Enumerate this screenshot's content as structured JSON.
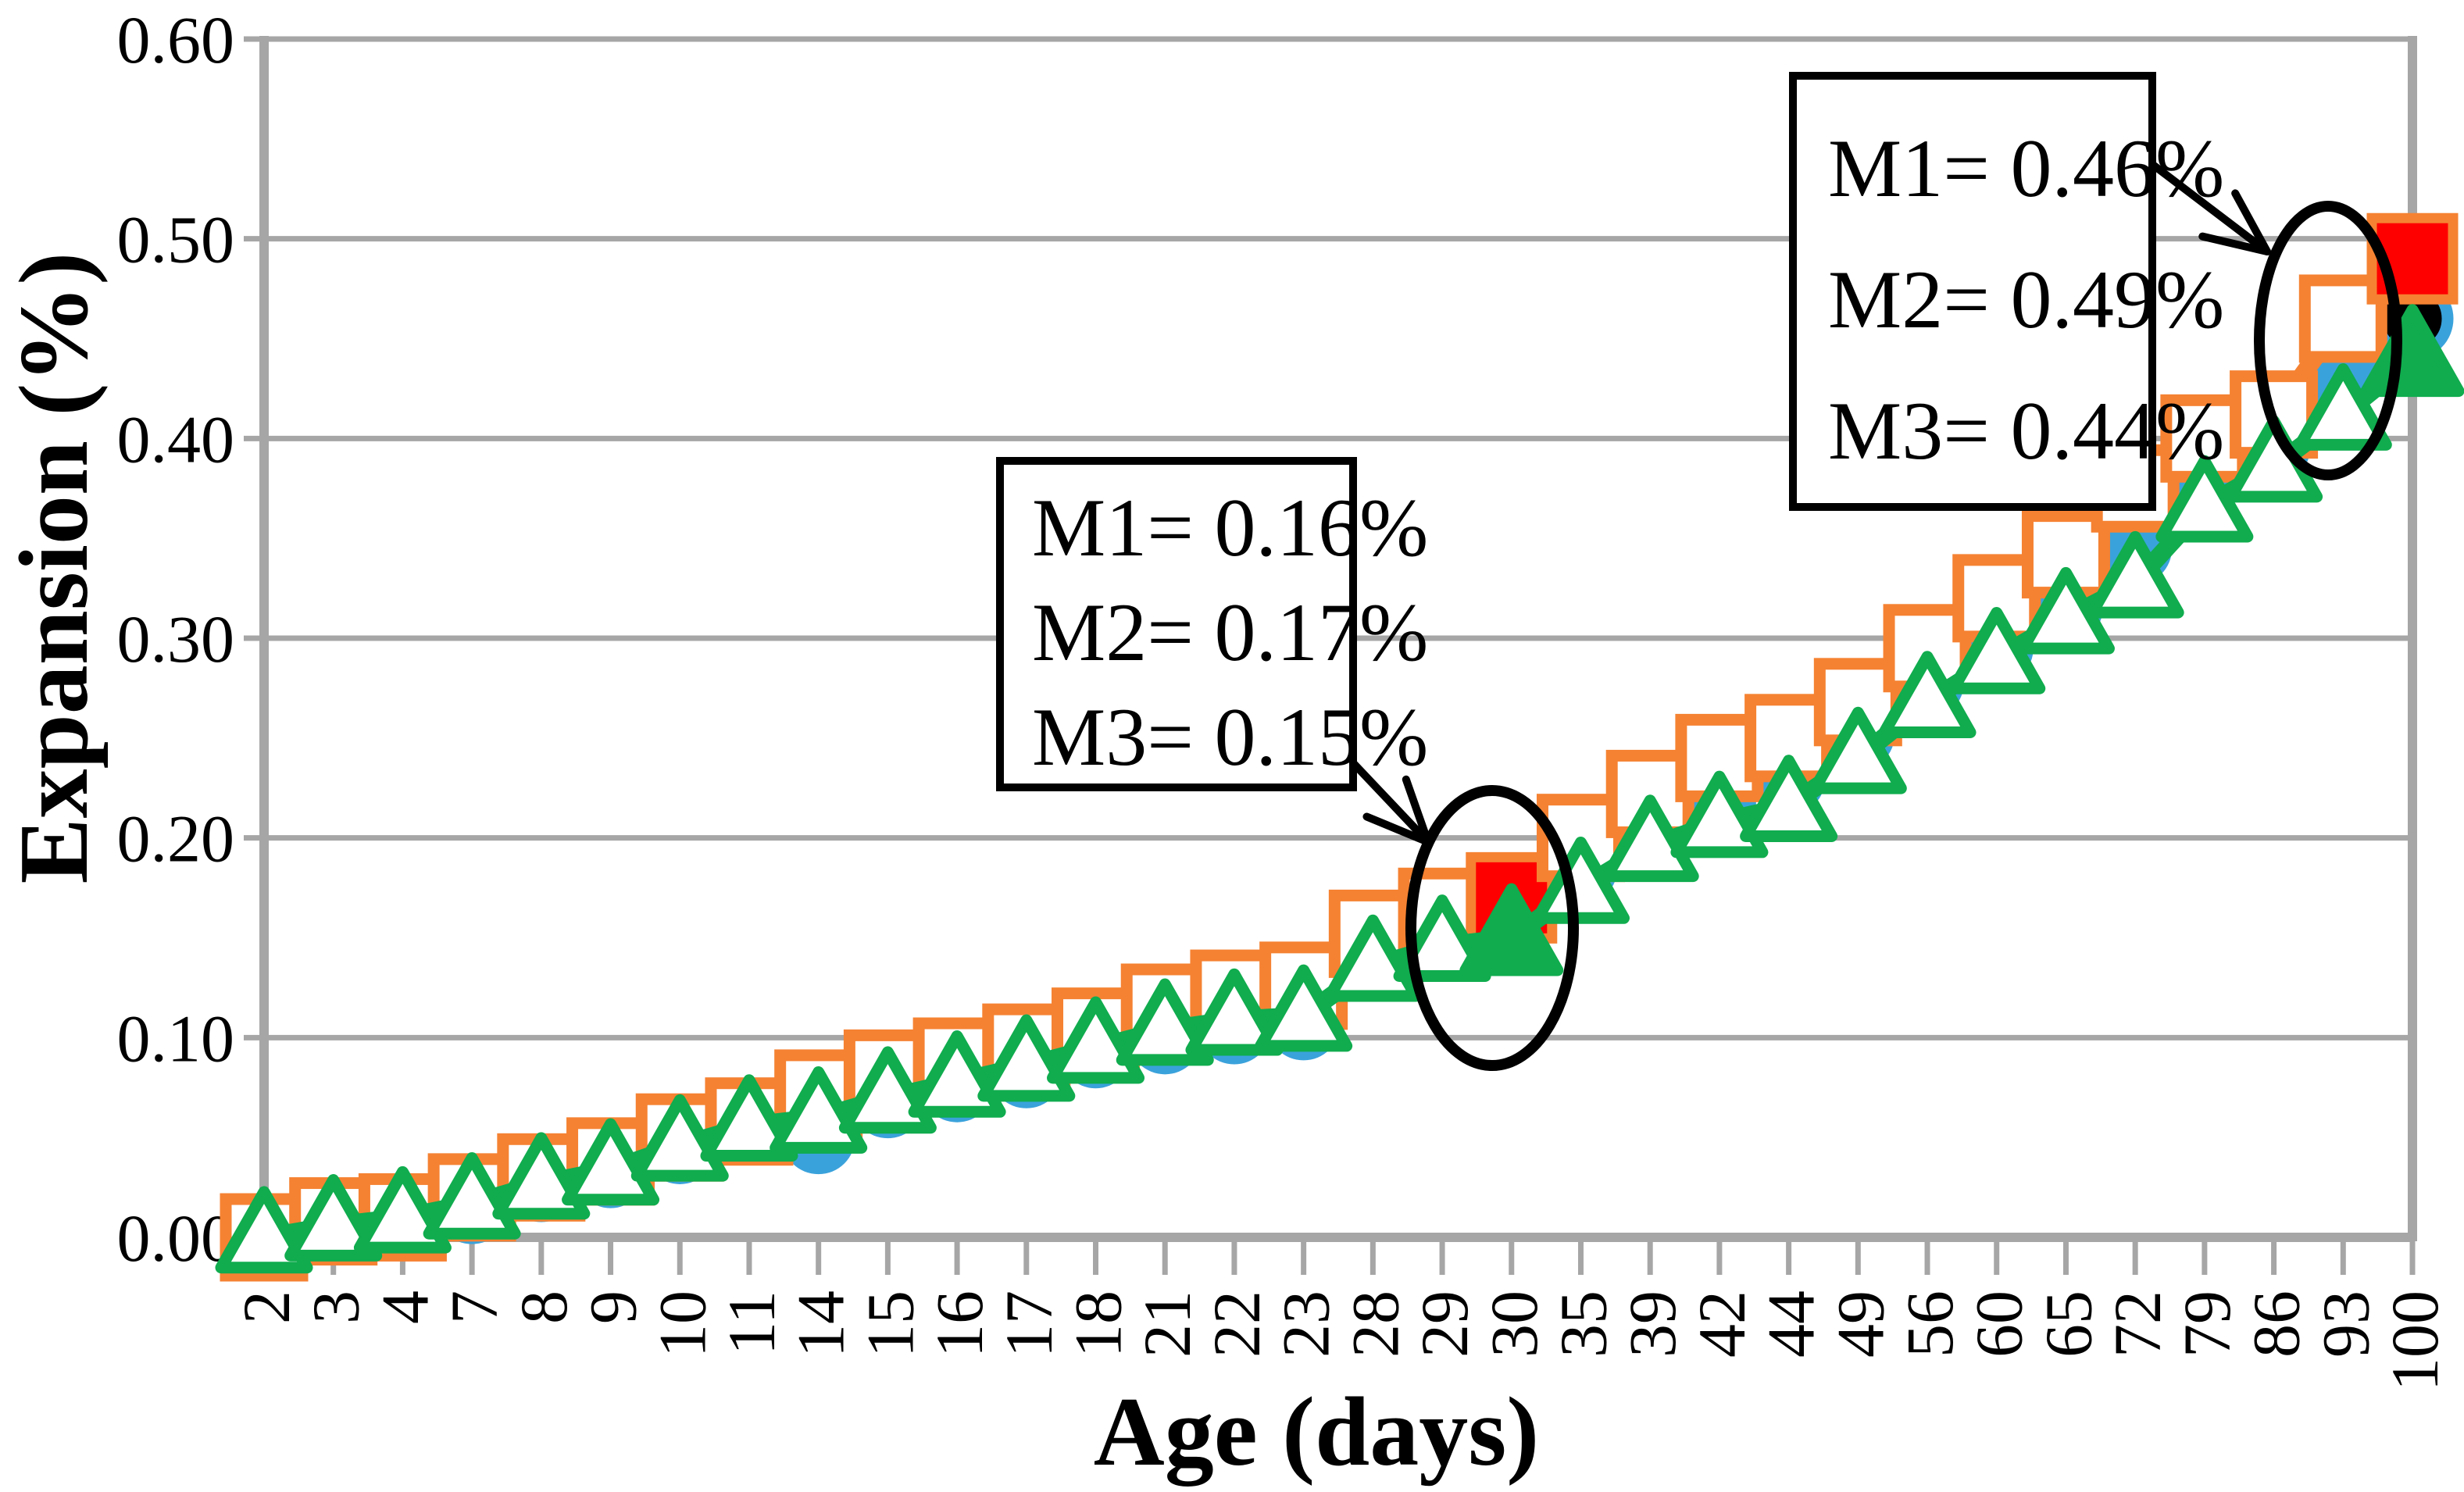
{
  "chart_data": {
    "type": "line",
    "title": "",
    "xlabel": "Age (days)",
    "ylabel": "Expansion (%)",
    "categories": [
      "2",
      "3",
      "4",
      "7",
      "8",
      "9",
      "10",
      "11",
      "14",
      "15",
      "16",
      "17",
      "18",
      "21",
      "22",
      "23",
      "28",
      "29",
      "30",
      "35",
      "39",
      "42",
      "44",
      "49",
      "56",
      "60",
      "65",
      "72",
      "79",
      "86",
      "93",
      "100"
    ],
    "ylim": [
      0.0,
      0.6
    ],
    "ytick_labels": [
      "0.00",
      "0.10",
      "0.20",
      "0.30",
      "0.40",
      "0.50",
      "0.60"
    ],
    "grid": "horizontal",
    "legend": "none",
    "series": [
      {
        "name": "M1",
        "color": "#3AA2DB",
        "marker": "circle-filled",
        "values": [
          0.0,
          0.005,
          0.008,
          0.015,
          0.026,
          0.033,
          0.045,
          0.055,
          0.05,
          0.068,
          0.076,
          0.083,
          0.093,
          0.1,
          0.105,
          0.107,
          0.143,
          0.152,
          0.16,
          0.185,
          0.207,
          0.218,
          0.23,
          0.252,
          0.278,
          0.295,
          0.315,
          0.345,
          0.388,
          0.396,
          0.434,
          0.46
        ],
        "highlight_marker_color": "#000000"
      },
      {
        "name": "M2",
        "color": "#F58232",
        "marker": "square-open",
        "values": [
          0.0,
          0.008,
          0.01,
          0.02,
          0.03,
          0.038,
          0.05,
          0.058,
          0.072,
          0.082,
          0.088,
          0.095,
          0.103,
          0.115,
          0.122,
          0.126,
          0.152,
          0.163,
          0.17,
          0.2,
          0.222,
          0.24,
          0.25,
          0.268,
          0.295,
          0.32,
          0.342,
          0.375,
          0.4,
          0.412,
          0.46,
          0.49
        ],
        "highlight_marker_color": "#FE0000"
      },
      {
        "name": "M3",
        "color": "#10AC4E",
        "marker": "triangle-open",
        "values": [
          0.0,
          0.006,
          0.01,
          0.017,
          0.027,
          0.034,
          0.046,
          0.056,
          0.06,
          0.07,
          0.078,
          0.086,
          0.095,
          0.104,
          0.109,
          0.111,
          0.136,
          0.146,
          0.15,
          0.175,
          0.196,
          0.208,
          0.216,
          0.24,
          0.268,
          0.29,
          0.31,
          0.328,
          0.366,
          0.386,
          0.412,
          0.44
        ],
        "highlight_marker_color": "#10AC4E"
      }
    ],
    "highlight_categories": [
      "30",
      "100"
    ],
    "annotations": [
      {
        "id": "day30-box",
        "lines": [
          "M1= 0.16%",
          "M2= 0.17%",
          "M3= 0.15%"
        ],
        "points_to": "day 30 markers"
      },
      {
        "id": "day100-box",
        "lines": [
          "M1= 0.46%",
          "M2= 0.49%",
          "M3= 0.44%"
        ],
        "points_to": "day 93-100 markers"
      }
    ],
    "axis_color": "#A6A6A6",
    "gridline_color": "#A6A6A6",
    "annotation_color": "#000000"
  }
}
